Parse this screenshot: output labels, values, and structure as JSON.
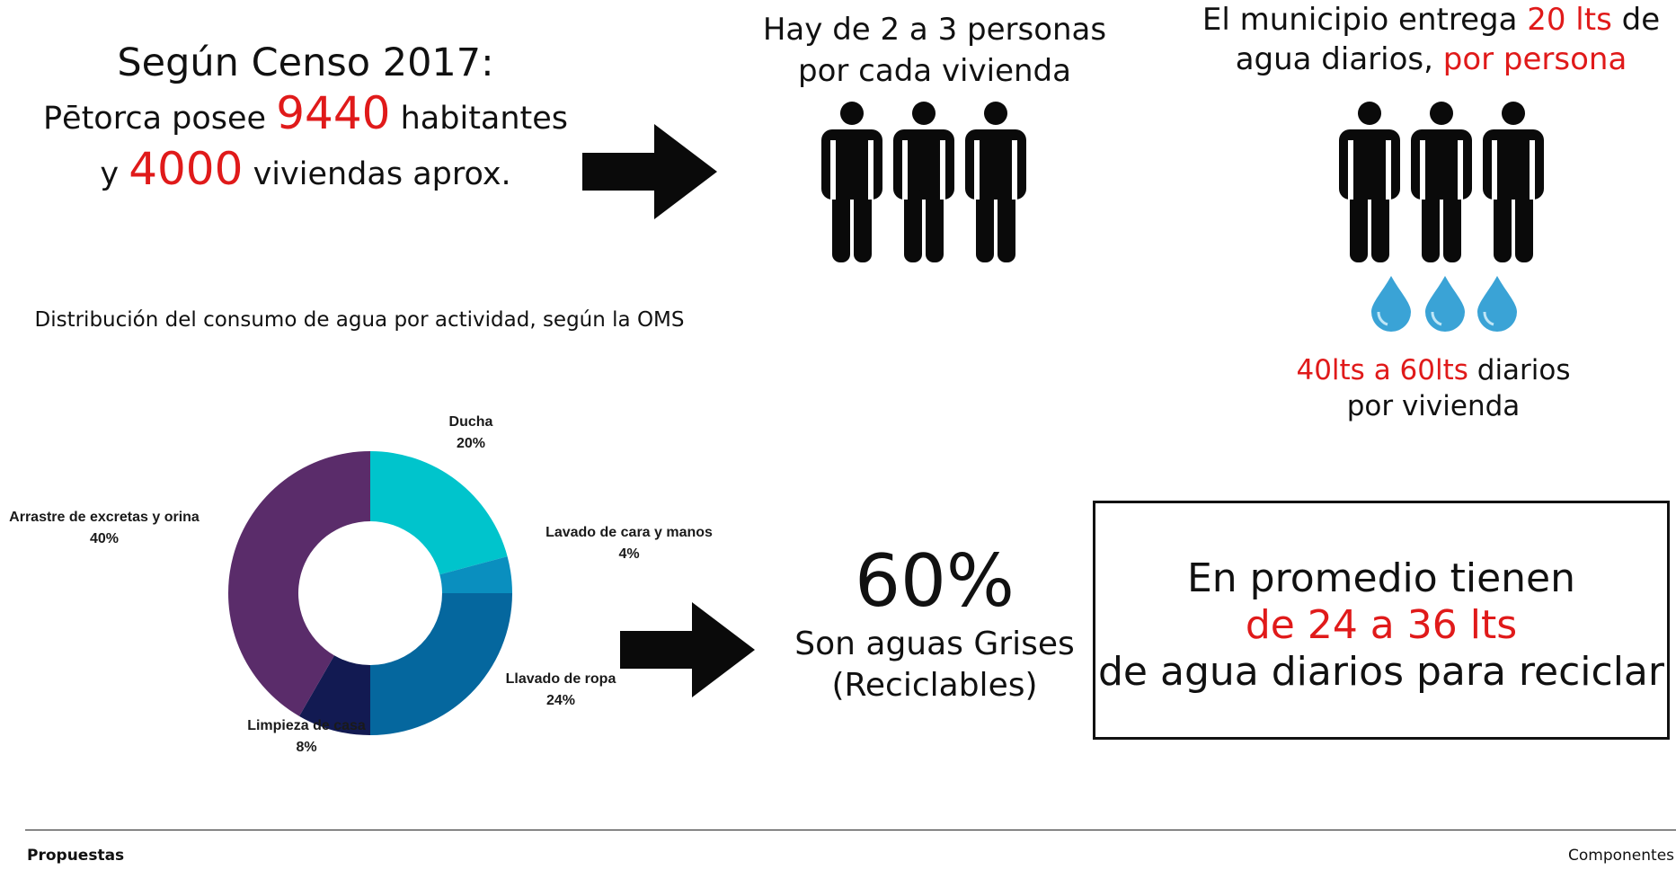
{
  "censo": {
    "line1": "Según Censo 2017:",
    "line2_pre": "Pētorca posee",
    "habitantes": "9440",
    "line2_post": "habitantes",
    "line3_pre": "y",
    "viviendas": "4000",
    "line3_post": "viviendas aprox."
  },
  "personas": {
    "line1": "Hay de 2 a 3 personas",
    "line2": "por cada vivienda"
  },
  "municipio": {
    "pre": "El municipio entrega",
    "amount": "20 lts",
    "de": "de",
    "line2_pre": "agua diarios,",
    "per": "por persona"
  },
  "vivienda": {
    "range": "40lts a 60lts",
    "diarios": "diarios",
    "line2": "por vivienda"
  },
  "grises": {
    "percent": "60%",
    "line1": "Son aguas Grises",
    "line2": "(Reciclables)"
  },
  "promedio": {
    "line1": "En promedio tienen",
    "line2": "de 24 a 36 lts",
    "line3": "de agua diarios para reciclar"
  },
  "footer": {
    "left": "Propuestas",
    "right": "Componentes"
  },
  "icons": {
    "person": "person-icon",
    "drop": "water-drop-icon",
    "arrow": "arrow-right-icon"
  },
  "colors": {
    "accent_red": "#e01a1a",
    "drop_blue": "#3aa3d6"
  },
  "chart_data": {
    "type": "pie",
    "title": "Distribución del consumo de agua por actividad, según la OMS",
    "categories": [
      "Ducha",
      "Lavado de cara y manos",
      "Llavado de ropa",
      "Limpieza de casa",
      "Arrastre de excretas y orina"
    ],
    "values": [
      20,
      4,
      24,
      8,
      40
    ],
    "labels": [
      "20%",
      "4%",
      "24%",
      "8%",
      "40%"
    ],
    "colors": [
      "#00c4cc",
      "#0a8fbf",
      "#05679e",
      "#121a52",
      "#5a2c6a"
    ],
    "donut": true
  }
}
